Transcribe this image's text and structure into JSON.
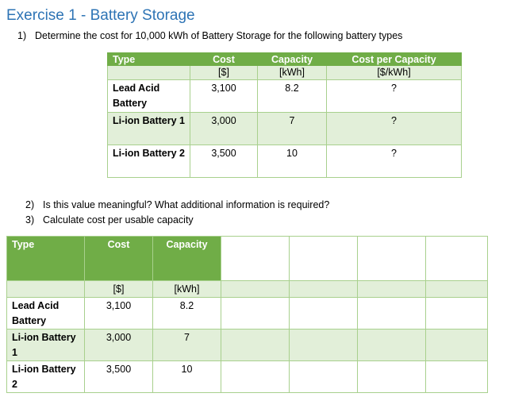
{
  "title": "Exercise 1 - Battery Storage",
  "questions": [
    {
      "num": "1)",
      "text": "Determine the cost for 10,000 kWh of Battery Storage for the following battery types"
    },
    {
      "num": "2)",
      "text": "Is this value meaningful? What additional information is required?"
    },
    {
      "num": "3)",
      "text": "Calculate cost per usable capacity"
    }
  ],
  "table1": {
    "headers": [
      "Type",
      "Cost",
      "Capacity",
      "Cost per Capacity"
    ],
    "units": [
      "",
      "[$]",
      "[kWh]",
      "[$/kWh]"
    ],
    "rows": [
      {
        "type": "Lead Acid Battery",
        "cost": "3,100",
        "capacity": "8.2",
        "cpc": "?"
      },
      {
        "type": "Li-ion Battery 1",
        "cost": "3,000",
        "capacity": "7",
        "cpc": "?"
      },
      {
        "type": "Li-ion Battery 2",
        "cost": "3,500",
        "capacity": "10",
        "cpc": "?"
      }
    ]
  },
  "table2": {
    "headers": [
      "Type",
      "Cost",
      "Capacity"
    ],
    "units": [
      "",
      "[$]",
      "[kWh]"
    ],
    "rows": [
      {
        "type": "Lead Acid Battery",
        "cost": "3,100",
        "capacity": "8.2"
      },
      {
        "type": "Li-ion Battery 1",
        "cost": "3,000",
        "capacity": "7"
      },
      {
        "type": "Li-ion Battery 2",
        "cost": "3,500",
        "capacity": "10"
      }
    ]
  },
  "colors": {
    "title": "#2e74b5",
    "header_green": "#70ad47",
    "band_green": "#e2efd9",
    "border_green": "#a8d08d"
  }
}
